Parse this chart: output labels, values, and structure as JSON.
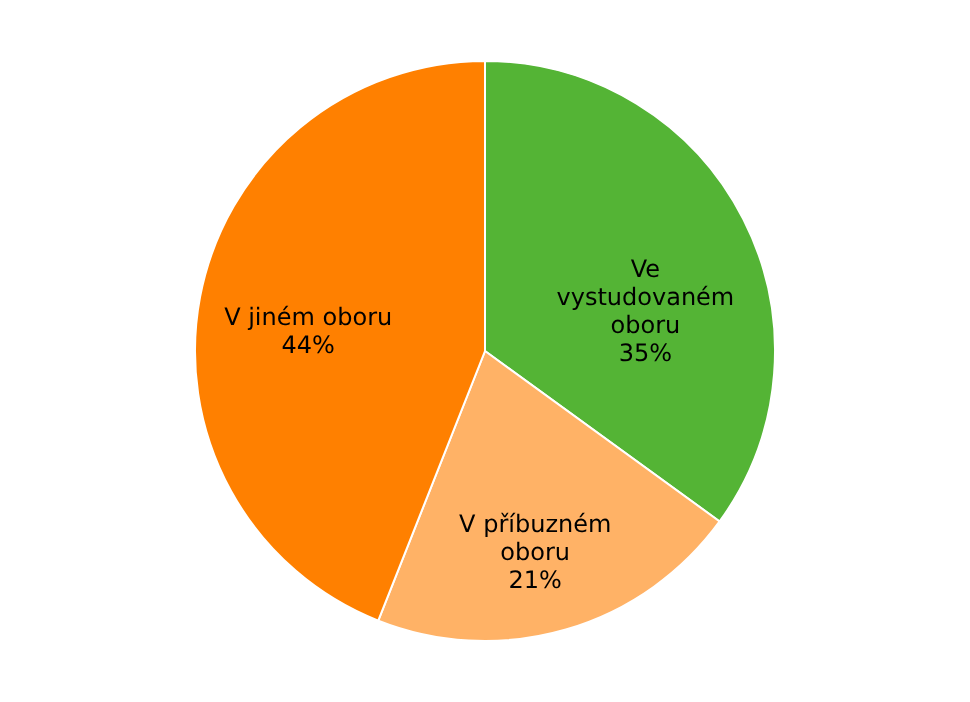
{
  "chart_data": {
    "type": "pie",
    "categories": [
      "Ve vystudovaném oboru",
      "V příbuzném oboru",
      "V jiném oboru"
    ],
    "values": [
      35,
      21,
      44
    ],
    "value_labels": [
      "35%",
      "21%",
      "44%"
    ],
    "colors": [
      "#54b435",
      "#ffb266",
      "#ff8000"
    ]
  }
}
